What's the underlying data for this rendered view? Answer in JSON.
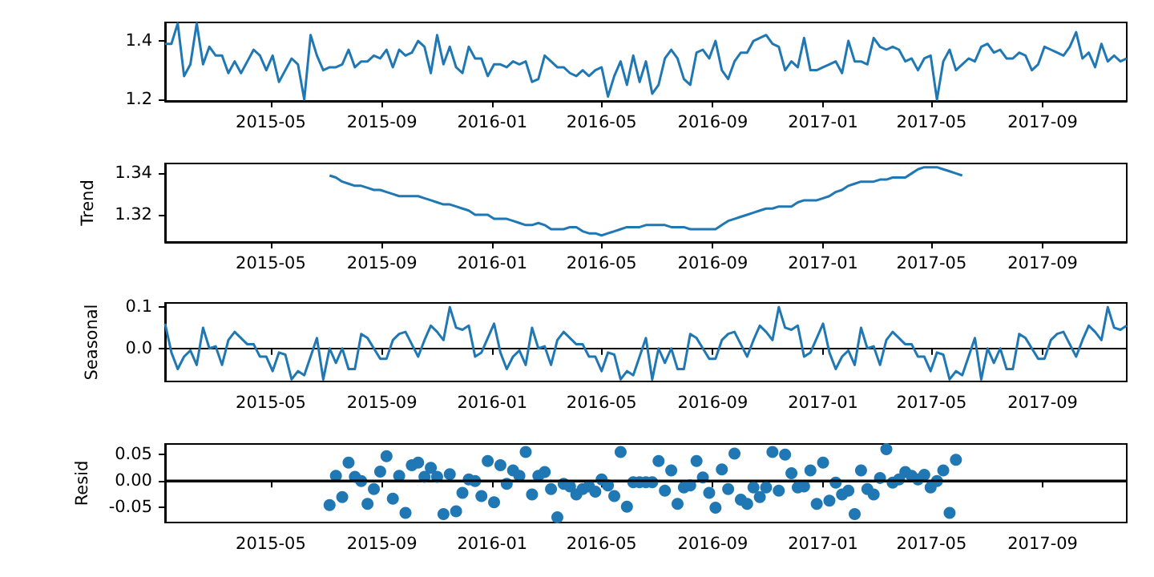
{
  "chart_data": [
    {
      "type": "line",
      "x": [
        "2015-01-04",
        "2015-01-11",
        "2015-01-18",
        "2015-01-25",
        "2015-02-01",
        "2015-02-08",
        "2015-02-15",
        "2015-02-22",
        "2015-03-01",
        "2015-03-08",
        "2015-03-15",
        "2015-03-22",
        "2015-03-29",
        "2015-04-05",
        "2015-04-12",
        "2015-04-19",
        "2015-04-26",
        "2015-05-03",
        "2015-05-10",
        "2015-05-17",
        "2015-05-24",
        "2015-05-31",
        "2015-06-07",
        "2015-06-14",
        "2015-06-21",
        "2015-06-28",
        "2015-07-05",
        "2015-07-12",
        "2015-07-19",
        "2015-07-26",
        "2015-08-02",
        "2015-08-09",
        "2015-08-16",
        "2015-08-23",
        "2015-08-30",
        "2015-09-06",
        "2015-09-13",
        "2015-09-20",
        "2015-09-27",
        "2015-10-04",
        "2015-10-11",
        "2015-10-18",
        "2015-10-25",
        "2015-11-01",
        "2015-11-08",
        "2015-11-15",
        "2015-11-22",
        "2015-11-29",
        "2015-12-06",
        "2015-12-13",
        "2015-12-20",
        "2015-12-27",
        "2016-01-03",
        "2016-01-10",
        "2016-01-17",
        "2016-01-24",
        "2016-01-31",
        "2016-02-07",
        "2016-02-14",
        "2016-02-21",
        "2016-02-28",
        "2016-03-06",
        "2016-03-13",
        "2016-03-20",
        "2016-03-27",
        "2016-04-03",
        "2016-04-10",
        "2016-04-17",
        "2016-04-24",
        "2016-05-01",
        "2016-05-08",
        "2016-05-15",
        "2016-05-22",
        "2016-05-29",
        "2016-06-05",
        "2016-06-12",
        "2016-06-19",
        "2016-06-26",
        "2016-07-03",
        "2016-07-10",
        "2016-07-17",
        "2016-07-24",
        "2016-07-31",
        "2016-08-07",
        "2016-08-14",
        "2016-08-21",
        "2016-08-28",
        "2016-09-04",
        "2016-09-11",
        "2016-09-18",
        "2016-09-25",
        "2016-10-02",
        "2016-10-09",
        "2016-10-16",
        "2016-10-23",
        "2016-10-30",
        "2016-11-06",
        "2016-11-13",
        "2016-11-20",
        "2016-11-27",
        "2016-12-04",
        "2016-12-11",
        "2016-12-18",
        "2016-12-25",
        "2017-01-01",
        "2017-01-08",
        "2017-01-15",
        "2017-01-22",
        "2017-01-29",
        "2017-02-05",
        "2017-02-12",
        "2017-02-19",
        "2017-02-26",
        "2017-03-05",
        "2017-03-12",
        "2017-03-19",
        "2017-03-26",
        "2017-04-02",
        "2017-04-09",
        "2017-04-16",
        "2017-04-23",
        "2017-04-30",
        "2017-05-07",
        "2017-05-14",
        "2017-05-21",
        "2017-05-28",
        "2017-06-04",
        "2017-06-11",
        "2017-06-18",
        "2017-06-25",
        "2017-07-02",
        "2017-07-09",
        "2017-07-16",
        "2017-07-23",
        "2017-07-30",
        "2017-08-06",
        "2017-08-13",
        "2017-08-20",
        "2017-08-27",
        "2017-09-03",
        "2017-09-10",
        "2017-09-17",
        "2017-09-24",
        "2017-10-01",
        "2017-10-08",
        "2017-10-15",
        "2017-10-22",
        "2017-10-29",
        "2017-11-05",
        "2017-11-12",
        "2017-11-19",
        "2017-11-26",
        "2017-12-03"
      ],
      "series": [
        {
          "color": "#1f77b4",
          "values": [
            1.39,
            1.39,
            1.46,
            1.28,
            1.32,
            1.46,
            1.32,
            1.38,
            1.35,
            1.35,
            1.29,
            1.33,
            1.29,
            1.33,
            1.37,
            1.35,
            1.3,
            1.35,
            1.26,
            1.3,
            1.34,
            1.32,
            1.2,
            1.42,
            1.35,
            1.3,
            1.31,
            1.31,
            1.32,
            1.37,
            1.31,
            1.33,
            1.33,
            1.35,
            1.34,
            1.37,
            1.31,
            1.37,
            1.35,
            1.36,
            1.4,
            1.38,
            1.29,
            1.42,
            1.32,
            1.38,
            1.31,
            1.29,
            1.38,
            1.34,
            1.34,
            1.28,
            1.32,
            1.32,
            1.31,
            1.33,
            1.32,
            1.33,
            1.26,
            1.27,
            1.35,
            1.33,
            1.31,
            1.31,
            1.29,
            1.28,
            1.3,
            1.28,
            1.3,
            1.31,
            1.21,
            1.28,
            1.33,
            1.25,
            1.35,
            1.26,
            1.33,
            1.22,
            1.25,
            1.34,
            1.37,
            1.34,
            1.27,
            1.25,
            1.36,
            1.37,
            1.34,
            1.4,
            1.3,
            1.27,
            1.33,
            1.36,
            1.36,
            1.4,
            1.41,
            1.42,
            1.39,
            1.38,
            1.3,
            1.33,
            1.31,
            1.41,
            1.3,
            1.3,
            1.31,
            1.32,
            1.33,
            1.29,
            1.4,
            1.33,
            1.33,
            1.32,
            1.41,
            1.38,
            1.37,
            1.38,
            1.37,
            1.33,
            1.34,
            1.3,
            1.34,
            1.35,
            1.2,
            1.33,
            1.37,
            1.3,
            1.32,
            1.34,
            1.33,
            1.38,
            1.39,
            1.36,
            1.37,
            1.34,
            1.34,
            1.36,
            1.35,
            1.3,
            1.32,
            1.38,
            1.37,
            1.36,
            1.35,
            1.38,
            1.43,
            1.34,
            1.36,
            1.31,
            1.39,
            1.33,
            1.35,
            1.33,
            1.34
          ]
        }
      ],
      "xlim": [
        "2015-01-04",
        "2017-12-03"
      ],
      "xticks": [
        "2015-05",
        "2015-09",
        "2016-01",
        "2016-05",
        "2016-09",
        "2017-01",
        "2017-05",
        "2017-09"
      ],
      "ylim": [
        1.195,
        1.463
      ],
      "yticks": [
        1.2,
        1.4
      ]
    },
    {
      "type": "line",
      "ylabel": "Trend",
      "x": [
        "2015-07-05",
        "2015-07-12",
        "2015-07-19",
        "2015-07-26",
        "2015-08-02",
        "2015-08-09",
        "2015-08-16",
        "2015-08-23",
        "2015-08-30",
        "2015-09-06",
        "2015-09-13",
        "2015-09-20",
        "2015-09-27",
        "2015-10-04",
        "2015-10-11",
        "2015-10-18",
        "2015-10-25",
        "2015-11-01",
        "2015-11-08",
        "2015-11-15",
        "2015-11-22",
        "2015-11-29",
        "2015-12-06",
        "2015-12-13",
        "2015-12-20",
        "2015-12-27",
        "2016-01-03",
        "2016-01-10",
        "2016-01-17",
        "2016-01-24",
        "2016-01-31",
        "2016-02-07",
        "2016-02-14",
        "2016-02-21",
        "2016-02-28",
        "2016-03-06",
        "2016-03-13",
        "2016-03-20",
        "2016-03-27",
        "2016-04-03",
        "2016-04-10",
        "2016-04-17",
        "2016-04-24",
        "2016-05-01",
        "2016-05-08",
        "2016-05-15",
        "2016-05-22",
        "2016-05-29",
        "2016-06-05",
        "2016-06-12",
        "2016-06-19",
        "2016-06-26",
        "2016-07-03",
        "2016-07-10",
        "2016-07-17",
        "2016-07-24",
        "2016-07-31",
        "2016-08-07",
        "2016-08-14",
        "2016-08-21",
        "2016-08-28",
        "2016-09-04",
        "2016-09-11",
        "2016-09-18",
        "2016-09-25",
        "2016-10-02",
        "2016-10-09",
        "2016-10-16",
        "2016-10-23",
        "2016-10-30",
        "2016-11-06",
        "2016-11-13",
        "2016-11-20",
        "2016-11-27",
        "2016-12-04",
        "2016-12-11",
        "2016-12-18",
        "2016-12-25",
        "2017-01-01",
        "2017-01-08",
        "2017-01-15",
        "2017-01-22",
        "2017-01-29",
        "2017-02-05",
        "2017-02-12",
        "2017-02-19",
        "2017-02-26",
        "2017-03-05",
        "2017-03-12",
        "2017-03-19",
        "2017-03-26",
        "2017-04-02",
        "2017-04-09",
        "2017-04-16",
        "2017-04-23",
        "2017-04-30",
        "2017-05-07",
        "2017-05-14",
        "2017-05-21",
        "2017-05-28",
        "2017-06-04"
      ],
      "series": [
        {
          "color": "#1f77b4",
          "values": [
            1.339,
            1.338,
            1.336,
            1.335,
            1.334,
            1.334,
            1.333,
            1.332,
            1.332,
            1.331,
            1.33,
            1.329,
            1.329,
            1.329,
            1.329,
            1.328,
            1.327,
            1.326,
            1.325,
            1.325,
            1.324,
            1.323,
            1.322,
            1.32,
            1.32,
            1.32,
            1.318,
            1.318,
            1.318,
            1.317,
            1.316,
            1.315,
            1.315,
            1.316,
            1.315,
            1.313,
            1.313,
            1.313,
            1.314,
            1.314,
            1.312,
            1.311,
            1.311,
            1.31,
            1.311,
            1.312,
            1.313,
            1.314,
            1.314,
            1.314,
            1.315,
            1.315,
            1.315,
            1.315,
            1.314,
            1.314,
            1.314,
            1.313,
            1.313,
            1.313,
            1.313,
            1.313,
            1.315,
            1.317,
            1.318,
            1.319,
            1.32,
            1.321,
            1.322,
            1.323,
            1.323,
            1.324,
            1.324,
            1.324,
            1.326,
            1.327,
            1.327,
            1.327,
            1.328,
            1.329,
            1.331,
            1.332,
            1.334,
            1.335,
            1.336,
            1.336,
            1.336,
            1.337,
            1.337,
            1.338,
            1.338,
            1.338,
            1.34,
            1.342,
            1.343,
            1.343,
            1.343,
            1.342,
            1.341,
            1.34,
            1.339
          ]
        }
      ],
      "xlim": [
        "2015-01-04",
        "2017-12-03"
      ],
      "xticks": [
        "2015-05",
        "2015-09",
        "2016-01",
        "2016-05",
        "2016-09",
        "2017-01",
        "2017-05",
        "2017-09"
      ],
      "ylim": [
        1.3068,
        1.3448
      ],
      "yticks": [
        1.32,
        1.34
      ]
    },
    {
      "type": "line",
      "ylabel": "Seasonal",
      "x": [
        "2015-01-04",
        "2015-01-11",
        "2015-01-18",
        "2015-01-25",
        "2015-02-01",
        "2015-02-08",
        "2015-02-15",
        "2015-02-22",
        "2015-03-01",
        "2015-03-08",
        "2015-03-15",
        "2015-03-22",
        "2015-03-29",
        "2015-04-05",
        "2015-04-12",
        "2015-04-19",
        "2015-04-26",
        "2015-05-03",
        "2015-05-10",
        "2015-05-17",
        "2015-05-24",
        "2015-05-31",
        "2015-06-07",
        "2015-06-14",
        "2015-06-21",
        "2015-06-28",
        "2015-07-05",
        "2015-07-12",
        "2015-07-19",
        "2015-07-26",
        "2015-08-02",
        "2015-08-09",
        "2015-08-16",
        "2015-08-23",
        "2015-08-30",
        "2015-09-06",
        "2015-09-13",
        "2015-09-20",
        "2015-09-27",
        "2015-10-04",
        "2015-10-11",
        "2015-10-18",
        "2015-10-25",
        "2015-11-01",
        "2015-11-08",
        "2015-11-15",
        "2015-11-22",
        "2015-11-29",
        "2015-12-06",
        "2015-12-13",
        "2015-12-20",
        "2015-12-27",
        "2016-01-03",
        "2016-01-10",
        "2016-01-17",
        "2016-01-24",
        "2016-01-31",
        "2016-02-07",
        "2016-02-14",
        "2016-02-21",
        "2016-02-28",
        "2016-03-06",
        "2016-03-13",
        "2016-03-20",
        "2016-03-27",
        "2016-04-03",
        "2016-04-10",
        "2016-04-17",
        "2016-04-24",
        "2016-05-01",
        "2016-05-08",
        "2016-05-15",
        "2016-05-22",
        "2016-05-29",
        "2016-06-05",
        "2016-06-12",
        "2016-06-19",
        "2016-06-26",
        "2016-07-03",
        "2016-07-10",
        "2016-07-17",
        "2016-07-24",
        "2016-07-31",
        "2016-08-07",
        "2016-08-14",
        "2016-08-21",
        "2016-08-28",
        "2016-09-04",
        "2016-09-11",
        "2016-09-18",
        "2016-09-25",
        "2016-10-02",
        "2016-10-09",
        "2016-10-16",
        "2016-10-23",
        "2016-10-30",
        "2016-11-06",
        "2016-11-13",
        "2016-11-20",
        "2016-11-27",
        "2016-12-04",
        "2016-12-11",
        "2016-12-18",
        "2016-12-25",
        "2017-01-01",
        "2017-01-08",
        "2017-01-15",
        "2017-01-22",
        "2017-01-29",
        "2017-02-05",
        "2017-02-12",
        "2017-02-19",
        "2017-02-26",
        "2017-03-05",
        "2017-03-12",
        "2017-03-19",
        "2017-03-26",
        "2017-04-02",
        "2017-04-09",
        "2017-04-16",
        "2017-04-23",
        "2017-04-30",
        "2017-05-07",
        "2017-05-14",
        "2017-05-21",
        "2017-05-28",
        "2017-06-04",
        "2017-06-11",
        "2017-06-18",
        "2017-06-25",
        "2017-07-02",
        "2017-07-09",
        "2017-07-16",
        "2017-07-23",
        "2017-07-30",
        "2017-08-06",
        "2017-08-13",
        "2017-08-20",
        "2017-08-27",
        "2017-09-03",
        "2017-09-10",
        "2017-09-17",
        "2017-09-24",
        "2017-10-01",
        "2017-10-08",
        "2017-10-15",
        "2017-10-22",
        "2017-10-29",
        "2017-11-05",
        "2017-11-12",
        "2017-11-19",
        "2017-11-26",
        "2017-12-03"
      ],
      "series": [
        {
          "color": "#1f77b4",
          "values": [
            0.06,
            -0.01,
            -0.05,
            -0.02,
            -0.005,
            -0.04,
            0.05,
            0.0,
            0.005,
            -0.04,
            0.02,
            0.04,
            0.025,
            0.01,
            0.01,
            -0.02,
            -0.02,
            -0.055,
            -0.01,
            -0.015,
            -0.075,
            -0.055,
            -0.065,
            -0.02,
            0.025,
            -0.075,
            0.0,
            -0.035,
            0.0,
            -0.05,
            -0.05,
            0.035,
            0.025,
            0.0,
            -0.025,
            -0.025,
            0.02,
            0.035,
            0.04,
            0.01,
            -0.02,
            0.02,
            0.055,
            0.04,
            0.02,
            0.1,
            0.05,
            0.045,
            0.055,
            -0.02,
            -0.01,
            0.025,
            0.06,
            -0.01,
            -0.05,
            -0.02,
            -0.005,
            -0.04,
            0.05,
            0.0,
            0.005,
            -0.04,
            0.02,
            0.04,
            0.025,
            0.01,
            0.01,
            -0.02,
            -0.02,
            -0.055,
            -0.01,
            -0.015,
            -0.075,
            -0.055,
            -0.065,
            -0.02,
            0.025,
            -0.075,
            0.0,
            -0.035,
            0.0,
            -0.05,
            -0.05,
            0.035,
            0.025,
            0.0,
            -0.025,
            -0.025,
            0.02,
            0.035,
            0.04,
            0.01,
            -0.02,
            0.02,
            0.055,
            0.04,
            0.02,
            0.1,
            0.05,
            0.045,
            0.055,
            -0.02,
            -0.01,
            0.025,
            0.06,
            -0.01,
            -0.05,
            -0.02,
            -0.005,
            -0.04,
            0.05,
            0.0,
            0.005,
            -0.04,
            0.02,
            0.04,
            0.025,
            0.01,
            0.01,
            -0.02,
            -0.02,
            -0.055,
            -0.01,
            -0.015,
            -0.075,
            -0.055,
            -0.065,
            -0.02,
            0.025,
            -0.075,
            0.0,
            -0.035,
            0.0,
            -0.05,
            -0.05,
            0.035,
            0.025,
            0.0,
            -0.025,
            -0.025,
            0.02,
            0.035,
            0.04,
            0.01,
            -0.02,
            0.02,
            0.055,
            0.04,
            0.02,
            0.1,
            0.05,
            0.045,
            0.055
          ]
        }
      ],
      "xlim": [
        "2015-01-04",
        "2017-12-03"
      ],
      "xticks": [
        "2015-05",
        "2015-09",
        "2016-01",
        "2016-05",
        "2016-09",
        "2017-01",
        "2017-05",
        "2017-09"
      ],
      "ylim": [
        -0.08,
        0.11
      ],
      "yticks": [
        {
          "value": 0,
          "label": "0.0"
        },
        0.1
      ]
    },
    {
      "type": "scatter",
      "ylabel": "Resid",
      "marker": "circle",
      "x": [
        "2015-07-05",
        "2015-07-12",
        "2015-07-19",
        "2015-07-26",
        "2015-08-02",
        "2015-08-09",
        "2015-08-16",
        "2015-08-23",
        "2015-08-30",
        "2015-09-06",
        "2015-09-13",
        "2015-09-20",
        "2015-09-27",
        "2015-10-04",
        "2015-10-11",
        "2015-10-18",
        "2015-10-25",
        "2015-11-01",
        "2015-11-08",
        "2015-11-15",
        "2015-11-22",
        "2015-11-29",
        "2015-12-06",
        "2015-12-13",
        "2015-12-20",
        "2015-12-27",
        "2016-01-03",
        "2016-01-10",
        "2016-01-17",
        "2016-01-24",
        "2016-01-31",
        "2016-02-07",
        "2016-02-14",
        "2016-02-21",
        "2016-02-28",
        "2016-03-06",
        "2016-03-13",
        "2016-03-20",
        "2016-03-27",
        "2016-04-03",
        "2016-04-10",
        "2016-04-17",
        "2016-04-24",
        "2016-05-01",
        "2016-05-08",
        "2016-05-15",
        "2016-05-22",
        "2016-05-29",
        "2016-06-05",
        "2016-06-12",
        "2016-06-19",
        "2016-06-26",
        "2016-07-03",
        "2016-07-10",
        "2016-07-17",
        "2016-07-24",
        "2016-07-31",
        "2016-08-07",
        "2016-08-14",
        "2016-08-21",
        "2016-08-28",
        "2016-09-04",
        "2016-09-11",
        "2016-09-18",
        "2016-09-25",
        "2016-10-02",
        "2016-10-09",
        "2016-10-16",
        "2016-10-23",
        "2016-10-30",
        "2016-11-06",
        "2016-11-13",
        "2016-11-20",
        "2016-11-27",
        "2016-12-04",
        "2016-12-11",
        "2016-12-18",
        "2016-12-25",
        "2017-01-01",
        "2017-01-08",
        "2017-01-15",
        "2017-01-22",
        "2017-01-29",
        "2017-02-05",
        "2017-02-12",
        "2017-02-19",
        "2017-02-26",
        "2017-03-05",
        "2017-03-12",
        "2017-03-19",
        "2017-03-26",
        "2017-04-02",
        "2017-04-09",
        "2017-04-16",
        "2017-04-23",
        "2017-04-30",
        "2017-05-07",
        "2017-05-14",
        "2017-05-21",
        "2017-05-28"
      ],
      "series": [
        {
          "color": "#1f77b4",
          "values": [
            -0.045,
            0.01,
            -0.03,
            0.035,
            0.008,
            0.0,
            -0.043,
            -0.015,
            0.018,
            0.047,
            -0.033,
            0.01,
            -0.06,
            0.03,
            0.035,
            0.008,
            0.025,
            0.008,
            -0.062,
            0.013,
            -0.057,
            -0.022,
            0.003,
            0.0,
            -0.028,
            0.038,
            -0.04,
            0.03,
            -0.005,
            0.02,
            0.01,
            0.055,
            -0.025,
            0.01,
            0.017,
            -0.015,
            -0.068,
            -0.005,
            -0.01,
            -0.025,
            -0.015,
            -0.01,
            -0.02,
            0.003,
            -0.008,
            -0.028,
            0.055,
            -0.048,
            -0.002,
            -0.002,
            -0.002,
            -0.002,
            0.038,
            -0.018,
            0.02,
            -0.043,
            -0.012,
            -0.008,
            0.038,
            0.007,
            -0.022,
            -0.05,
            0.022,
            -0.015,
            0.052,
            -0.035,
            -0.043,
            -0.012,
            -0.03,
            -0.012,
            0.055,
            -0.018,
            0.05,
            0.015,
            -0.012,
            -0.01,
            0.02,
            -0.043,
            0.035,
            -0.037,
            -0.003,
            -0.025,
            -0.018,
            -0.062,
            0.02,
            -0.015,
            -0.025,
            0.006,
            0.06,
            -0.003,
            0.003,
            0.017,
            0.01,
            0.003,
            0.012,
            -0.012,
            0.0,
            0.02,
            -0.06,
            0.04
          ]
        }
      ],
      "xlim": [
        "2015-01-04",
        "2017-12-03"
      ],
      "xticks": [
        "2015-05",
        "2015-09",
        "2016-01",
        "2016-05",
        "2016-09",
        "2017-01",
        "2017-05",
        "2017-09"
      ],
      "ylim": [
        -0.078,
        0.07
      ],
      "yticks": [
        0.05,
        {
          "value": 0,
          "label": "0.00"
        },
        -0.05
      ],
      "ref_lines": [
        {
          "axis": "y",
          "value": 0,
          "color": "#000000"
        }
      ]
    }
  ]
}
